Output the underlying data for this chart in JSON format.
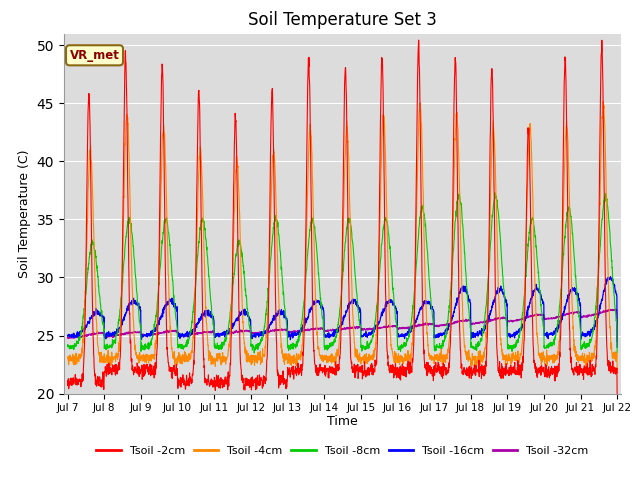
{
  "title": "Soil Temperature Set 3",
  "ylabel": "Soil Temperature (C)",
  "xlabel": "Time",
  "ylim": [
    20,
    51
  ],
  "yticks": [
    20,
    25,
    30,
    35,
    40,
    45,
    50
  ],
  "annotation": "VR_met",
  "bg_color": "#dcdcdc",
  "fig_color": "#ffffff",
  "colors": {
    "Tsoil -2cm": "#ff0000",
    "Tsoil -4cm": "#ff8800",
    "Tsoil -8cm": "#00cc00",
    "Tsoil -16cm": "#0000ff",
    "Tsoil -32cm": "#aa00aa"
  },
  "legend_labels": [
    "Tsoil -2cm",
    "Tsoil -4cm",
    "Tsoil -8cm",
    "Tsoil -16cm",
    "Tsoil -32cm"
  ],
  "x_tick_labels": [
    "Jul 7",
    "Jul 8",
    "Jul 9",
    "Jul 10",
    "Jul 11",
    "Jul 12",
    "Jul 13",
    "Jul 14",
    "Jul 15",
    "Jul 16",
    "Jul 17",
    "Jul 18",
    "Jul 19",
    "Jul 20",
    "Jul 21",
    "Jul 22"
  ],
  "n_days": 15,
  "points_per_day": 144,
  "start_day": 7
}
